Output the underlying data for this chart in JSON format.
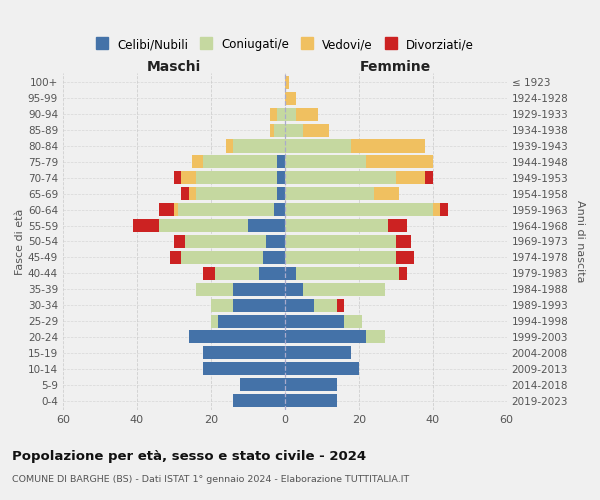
{
  "age_groups": [
    "0-4",
    "5-9",
    "10-14",
    "15-19",
    "20-24",
    "25-29",
    "30-34",
    "35-39",
    "40-44",
    "45-49",
    "50-54",
    "55-59",
    "60-64",
    "65-69",
    "70-74",
    "75-79",
    "80-84",
    "85-89",
    "90-94",
    "95-99",
    "100+"
  ],
  "birth_years": [
    "2019-2023",
    "2014-2018",
    "2009-2013",
    "2004-2008",
    "1999-2003",
    "1994-1998",
    "1989-1993",
    "1984-1988",
    "1979-1983",
    "1974-1978",
    "1969-1973",
    "1964-1968",
    "1959-1963",
    "1954-1958",
    "1949-1953",
    "1944-1948",
    "1939-1943",
    "1934-1938",
    "1929-1933",
    "1924-1928",
    "≤ 1923"
  ],
  "male": {
    "celibi": [
      14,
      12,
      22,
      22,
      26,
      18,
      14,
      14,
      7,
      6,
      5,
      10,
      3,
      2,
      2,
      2,
      0,
      0,
      0,
      0,
      0
    ],
    "coniugati": [
      0,
      0,
      0,
      0,
      0,
      2,
      6,
      10,
      12,
      22,
      22,
      24,
      26,
      22,
      22,
      20,
      14,
      3,
      2,
      0,
      0
    ],
    "vedovi": [
      0,
      0,
      0,
      0,
      0,
      0,
      0,
      0,
      0,
      0,
      0,
      0,
      1,
      2,
      4,
      3,
      2,
      1,
      2,
      0,
      0
    ],
    "divorziati": [
      0,
      0,
      0,
      0,
      0,
      0,
      0,
      0,
      3,
      3,
      3,
      7,
      4,
      2,
      2,
      0,
      0,
      0,
      0,
      0,
      0
    ]
  },
  "female": {
    "nubili": [
      14,
      14,
      20,
      18,
      22,
      16,
      8,
      5,
      3,
      0,
      0,
      0,
      0,
      0,
      0,
      0,
      0,
      0,
      0,
      0,
      0
    ],
    "coniugate": [
      0,
      0,
      0,
      0,
      5,
      5,
      6,
      22,
      28,
      30,
      30,
      28,
      40,
      24,
      30,
      22,
      18,
      5,
      3,
      0,
      0
    ],
    "vedove": [
      0,
      0,
      0,
      0,
      0,
      0,
      0,
      0,
      0,
      0,
      0,
      0,
      2,
      7,
      8,
      18,
      20,
      7,
      6,
      3,
      1
    ],
    "divorziate": [
      0,
      0,
      0,
      0,
      0,
      0,
      2,
      0,
      2,
      5,
      4,
      5,
      2,
      0,
      2,
      0,
      0,
      0,
      0,
      0,
      0
    ]
  },
  "colors": {
    "celibi": "#4472A8",
    "coniugati": "#C5D8A0",
    "vedovi": "#F0C060",
    "divorziati": "#CC2222"
  },
  "title": "Popolazione per età, sesso e stato civile - 2024",
  "subtitle": "COMUNE DI BARGHE (BS) - Dati ISTAT 1° gennaio 2024 - Elaborazione TUTTITALIA.IT",
  "xlabel_left": "Maschi",
  "xlabel_right": "Femmine",
  "ylabel_left": "Fasce di età",
  "ylabel_right": "Anni di nascita",
  "xlim": 60,
  "legend_labels": [
    "Celibi/Nubili",
    "Coniugati/e",
    "Vedovi/e",
    "Divorziati/e"
  ],
  "bg_color": "#f0f0f0",
  "grid_color": "#cccccc"
}
